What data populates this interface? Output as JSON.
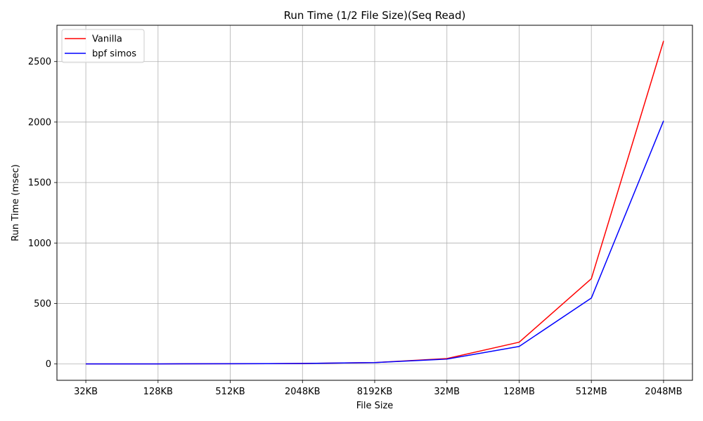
{
  "chart_data": {
    "type": "line",
    "title": "Run Time (1/2 File Size)(Seq Read)",
    "xlabel": "File Size",
    "ylabel": "Run Time (msec)",
    "categories": [
      "32KB",
      "128KB",
      "512KB",
      "2048KB",
      "8192KB",
      "32MB",
      "128MB",
      "512MB",
      "2048MB"
    ],
    "ylim": [
      -135,
      2800
    ],
    "yticks": [
      0,
      500,
      1000,
      1500,
      2000,
      2500
    ],
    "grid": true,
    "legend_position": "top-left",
    "series": [
      {
        "name": "Vanilla",
        "color": "#ff0000",
        "values": [
          1,
          1,
          2,
          4,
          12,
          45,
          180,
          705,
          2670
        ]
      },
      {
        "name": "bpf simos",
        "color": "#0000ff",
        "values": [
          1,
          1,
          2,
          4,
          12,
          40,
          145,
          545,
          2010
        ]
      }
    ]
  }
}
